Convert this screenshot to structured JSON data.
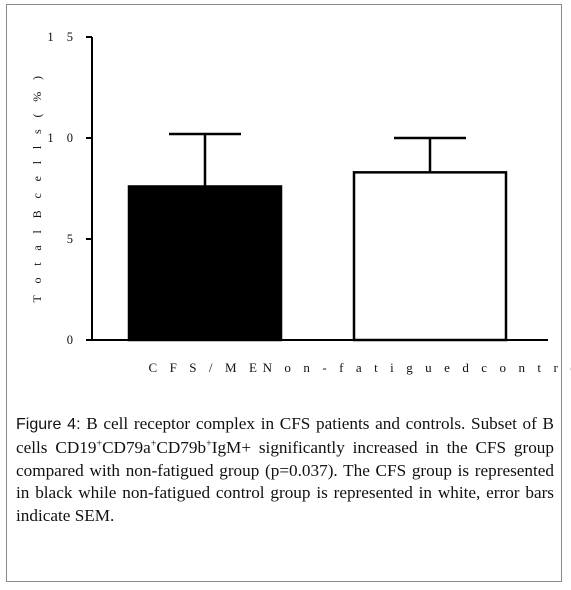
{
  "chart_data": {
    "type": "bar",
    "title": "",
    "xlabel": "",
    "ylabel": "T o t a l  B  c e l l s  ( %  )",
    "ylim": [
      0,
      15
    ],
    "yticks": [
      "0",
      "5",
      "1 0",
      "1 5"
    ],
    "ytick_values": [
      0,
      5,
      10,
      15
    ],
    "categories": [
      "C F S / M E",
      "N o n - f a t i g u e d   c o n t r o l"
    ],
    "values": [
      7.6,
      8.3
    ],
    "errors": [
      2.6,
      1.7
    ],
    "fills": [
      "#000000",
      "#ffffff"
    ],
    "grid": false
  },
  "caption": {
    "label": "Figure 4:",
    "part1": " B cell receptor complex in CFS patients and controls. Subset of B cells CD19",
    "sup1": "+",
    "part2": "CD79a",
    "sup2": "+",
    "part3": "CD79b",
    "sup3": "+",
    "part4": "IgM+ significantly increased in the CFS group compared with non-fatigued group (p=0.037). The CFS group is represented in black while non-fatigued control group is represented in white, error bars indicate SEM."
  }
}
